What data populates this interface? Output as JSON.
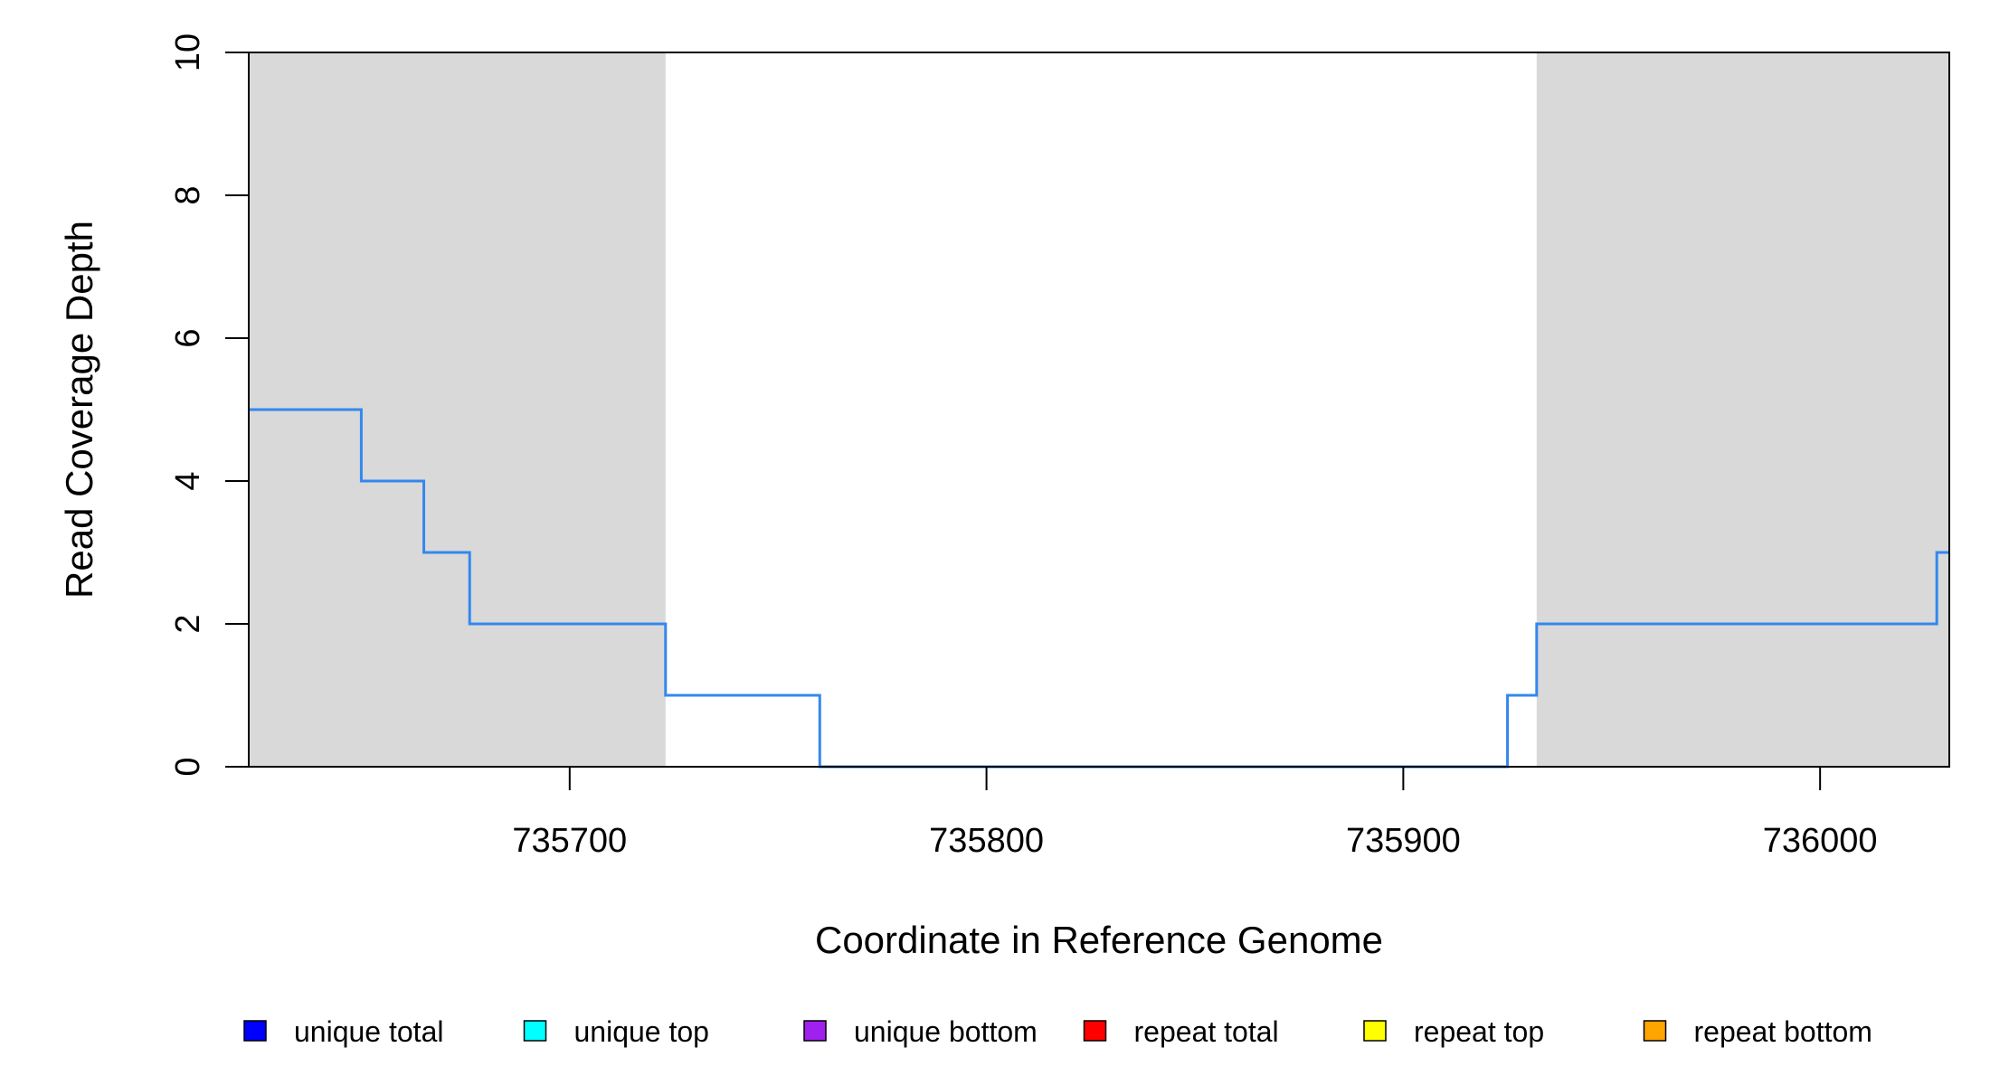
{
  "chart_data": {
    "type": "line",
    "title": "",
    "xlabel": "Coordinate in Reference Genome",
    "ylabel": "Read Coverage Depth",
    "xlim": [
      735623,
      736031
    ],
    "ylim": [
      0,
      10
    ],
    "x_ticks": [
      735700,
      735800,
      735900,
      736000
    ],
    "x_tick_labels": [
      "735700",
      "735800",
      "735900",
      "736000"
    ],
    "y_ticks": [
      0,
      2,
      4,
      6,
      8,
      10
    ],
    "y_tick_labels": [
      "0",
      "2",
      "4",
      "6",
      "8",
      "10"
    ],
    "shaded_regions": [
      {
        "x_start": 735623,
        "x_end": 735723,
        "color": "#d9d9d9"
      },
      {
        "x_start": 735932,
        "x_end": 736031,
        "color": "#d9d9d9"
      }
    ],
    "step_series": {
      "name": "coverage",
      "color": "#3388ee",
      "x": [
        735623,
        735650,
        735665,
        735676,
        735723,
        735760,
        735925,
        735932,
        736028,
        736031
      ],
      "y": [
        5,
        4,
        3,
        2,
        1,
        0,
        1,
        2,
        3,
        3
      ]
    },
    "baseline_series": {
      "color": "#c0504d",
      "y": 0
    },
    "grid": false,
    "legend_position": "bottom",
    "legend": [
      {
        "label": "unique total",
        "color": "#0000ff"
      },
      {
        "label": "unique top",
        "color": "#00ffff"
      },
      {
        "label": "unique bottom",
        "color": "#a020f0"
      },
      {
        "label": "repeat total",
        "color": "#ff0000"
      },
      {
        "label": "repeat top",
        "color": "#ffff00"
      },
      {
        "label": "repeat bottom",
        "color": "#ffa500"
      }
    ]
  }
}
